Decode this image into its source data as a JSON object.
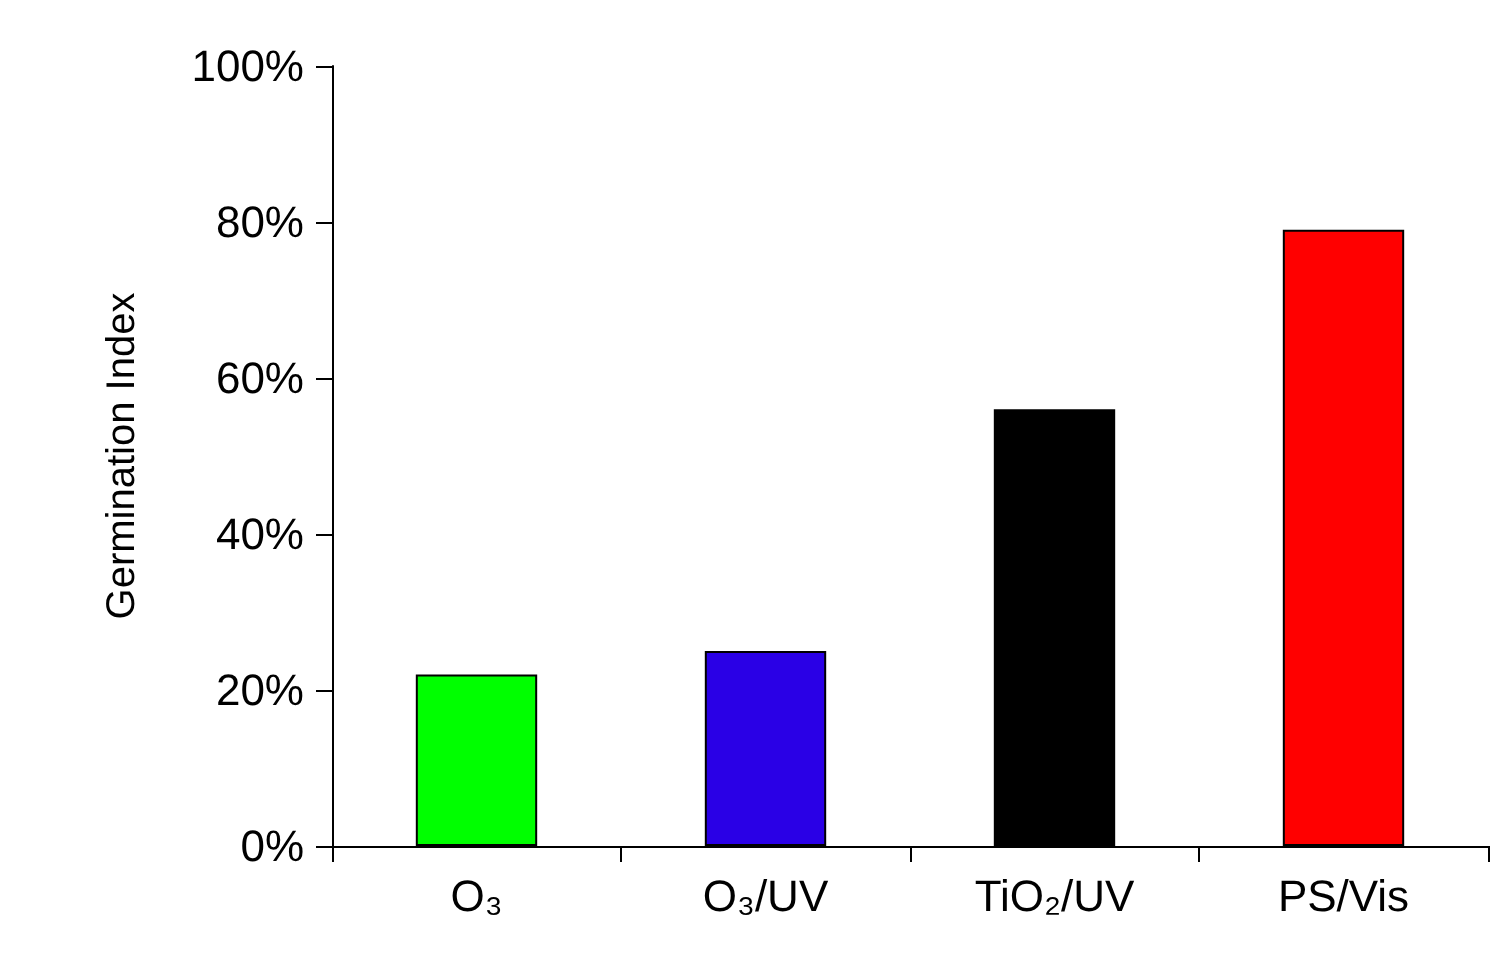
{
  "chart_data": {
    "type": "bar",
    "ylabel": "Germination Index",
    "categories": [
      "O₃",
      "O₃/UV",
      "TiO₂/UV",
      "PS/Vis"
    ],
    "values": [
      22,
      25,
      56,
      79
    ],
    "colors": [
      "#00ff00",
      "#2a00e6",
      "#000000",
      "#ff0000"
    ],
    "ylim": [
      0,
      100
    ],
    "yticks": [
      {
        "value": 0,
        "label": "0%"
      },
      {
        "value": 20,
        "label": "20%"
      },
      {
        "value": 40,
        "label": "40%"
      },
      {
        "value": 60,
        "label": "60%"
      },
      {
        "value": 80,
        "label": "80%"
      },
      {
        "value": 100,
        "label": "100%"
      }
    ],
    "grid": false
  }
}
